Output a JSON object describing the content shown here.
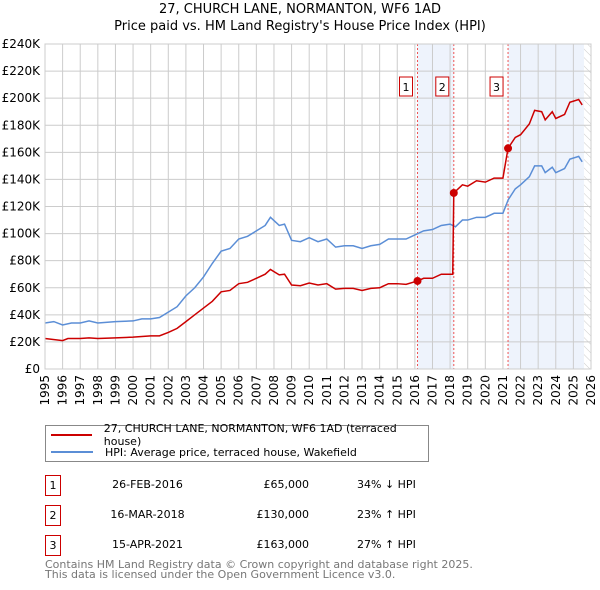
{
  "chart_data": {
    "type": "line",
    "title": "27, CHURCH LANE, NORMANTON, WF6 1AD",
    "subtitle": "Price paid vs. HM Land Registry's House Price Index (HPI)",
    "xlim": [
      1995,
      2026
    ],
    "ylim": [
      0,
      240000
    ],
    "y_ticks": [
      "£0",
      "£20K",
      "£40K",
      "£60K",
      "£80K",
      "£100K",
      "£120K",
      "£140K",
      "£160K",
      "£180K",
      "£200K",
      "£220K",
      "£240K"
    ],
    "x_ticks": [
      "1995",
      "1996",
      "1997",
      "1998",
      "1999",
      "2000",
      "2001",
      "2002",
      "2003",
      "2004",
      "2005",
      "2006",
      "2007",
      "2008",
      "2009",
      "2010",
      "2011",
      "2012",
      "2013",
      "2014",
      "2015",
      "2016",
      "2017",
      "2018",
      "2019",
      "2020",
      "2021",
      "2022",
      "2023",
      "2024",
      "2025",
      "2026"
    ],
    "grid": true,
    "series": [
      {
        "name": "27, CHURCH LANE, NORMANTON, WF6 1AD (terraced house)",
        "color": "#cc0000",
        "points": [
          [
            1995,
            22500
          ],
          [
            1996,
            21000
          ],
          [
            1996.3,
            22500
          ],
          [
            1997,
            22500
          ],
          [
            1997.5,
            23000
          ],
          [
            1998,
            22500
          ],
          [
            1999,
            23000
          ],
          [
            2000,
            23500
          ],
          [
            2001,
            24500
          ],
          [
            2001.5,
            24500
          ],
          [
            2002,
            27000
          ],
          [
            2002.5,
            30000
          ],
          [
            2003,
            35000
          ],
          [
            2003.5,
            40000
          ],
          [
            2004,
            45000
          ],
          [
            2004.5,
            50000
          ],
          [
            2005,
            57000
          ],
          [
            2005.5,
            58000
          ],
          [
            2006,
            63000
          ],
          [
            2006.5,
            64000
          ],
          [
            2007,
            67000
          ],
          [
            2007.5,
            70000
          ],
          [
            2007.8,
            73500
          ],
          [
            2008.3,
            69500
          ],
          [
            2008.6,
            70000
          ],
          [
            2009,
            62000
          ],
          [
            2009.5,
            61500
          ],
          [
            2010,
            63500
          ],
          [
            2010.5,
            62000
          ],
          [
            2011,
            63000
          ],
          [
            2011.5,
            59000
          ],
          [
            2012,
            59500
          ],
          [
            2012.5,
            59500
          ],
          [
            2013,
            58000
          ],
          [
            2013.5,
            59500
          ],
          [
            2014,
            60000
          ],
          [
            2014.5,
            63000
          ],
          [
            2015,
            63000
          ],
          [
            2015.5,
            62500
          ],
          [
            2016.15,
            65000
          ],
          [
            2016.5,
            67000
          ],
          [
            2017,
            67000
          ],
          [
            2017.5,
            70000
          ],
          [
            2018.15,
            70000
          ],
          [
            2018.21,
            130000
          ],
          [
            2018.7,
            136000
          ],
          [
            2019,
            135000
          ],
          [
            2019.5,
            139000
          ],
          [
            2020,
            138000
          ],
          [
            2020.5,
            141000
          ],
          [
            2021,
            141000
          ],
          [
            2021.29,
            163000
          ],
          [
            2021.7,
            171000
          ],
          [
            2022,
            173000
          ],
          [
            2022.5,
            181000
          ],
          [
            2022.8,
            191000
          ],
          [
            2023.2,
            190000
          ],
          [
            2023.4,
            184000
          ],
          [
            2023.8,
            190000
          ],
          [
            2024,
            185000
          ],
          [
            2024.5,
            188000
          ],
          [
            2024.8,
            197000
          ],
          [
            2025.3,
            199000
          ],
          [
            2025.5,
            195000
          ]
        ]
      },
      {
        "name": "HPI: Average price, terraced house, Wakefield",
        "color": "#5b8ed6",
        "points": [
          [
            1995,
            34000
          ],
          [
            1995.5,
            35000
          ],
          [
            1996,
            32500
          ],
          [
            1996.5,
            34000
          ],
          [
            1997,
            34000
          ],
          [
            1997.5,
            35500
          ],
          [
            1998,
            34000
          ],
          [
            1999,
            35000
          ],
          [
            2000,
            35500
          ],
          [
            2000.5,
            37000
          ],
          [
            2001,
            37000
          ],
          [
            2001.5,
            38000
          ],
          [
            2002,
            42000
          ],
          [
            2002.5,
            46000
          ],
          [
            2003,
            54000
          ],
          [
            2003.5,
            60000
          ],
          [
            2004,
            68000
          ],
          [
            2004.5,
            78000
          ],
          [
            2005,
            87000
          ],
          [
            2005.5,
            89000
          ],
          [
            2006,
            96000
          ],
          [
            2006.5,
            98000
          ],
          [
            2007,
            102000
          ],
          [
            2007.5,
            106000
          ],
          [
            2007.8,
            112000
          ],
          [
            2008.3,
            106000
          ],
          [
            2008.6,
            107000
          ],
          [
            2009,
            95000
          ],
          [
            2009.5,
            94000
          ],
          [
            2010,
            97000
          ],
          [
            2010.5,
            94000
          ],
          [
            2011,
            96000
          ],
          [
            2011.5,
            90000
          ],
          [
            2012,
            91000
          ],
          [
            2012.5,
            91000
          ],
          [
            2013,
            89000
          ],
          [
            2013.5,
            91000
          ],
          [
            2014,
            92000
          ],
          [
            2014.5,
            96000
          ],
          [
            2015,
            96000
          ],
          [
            2015.5,
            96000
          ],
          [
            2016,
            99000
          ],
          [
            2016.5,
            102000
          ],
          [
            2017,
            103000
          ],
          [
            2017.5,
            106000
          ],
          [
            2018,
            107000
          ],
          [
            2018.3,
            105000
          ],
          [
            2018.7,
            110000
          ],
          [
            2019,
            110000
          ],
          [
            2019.5,
            112000
          ],
          [
            2020,
            112000
          ],
          [
            2020.5,
            115000
          ],
          [
            2021,
            115000
          ],
          [
            2021.3,
            125000
          ],
          [
            2021.7,
            133000
          ],
          [
            2022,
            136000
          ],
          [
            2022.5,
            142000
          ],
          [
            2022.8,
            150000
          ],
          [
            2023.2,
            150000
          ],
          [
            2023.4,
            145000
          ],
          [
            2023.8,
            149000
          ],
          [
            2024,
            145000
          ],
          [
            2024.5,
            148000
          ],
          [
            2024.8,
            155000
          ],
          [
            2025.3,
            157000
          ],
          [
            2025.5,
            153000
          ]
        ]
      }
    ],
    "sales": [
      {
        "label": "1",
        "date": "26-FEB-2016",
        "x": 2016.15,
        "price": "£65,000",
        "value": 65000,
        "hpi": "34% ↓ HPI"
      },
      {
        "label": "2",
        "date": "16-MAR-2018",
        "x": 2018.21,
        "price": "£130,000",
        "value": 130000,
        "hpi": "23% ↑ HPI"
      },
      {
        "label": "3",
        "date": "15-APR-2021",
        "x": 2021.29,
        "price": "£163,000",
        "value": 163000,
        "hpi": "27% ↑ HPI"
      }
    ],
    "shaded_ranges": [
      [
        2016.15,
        2018.21
      ],
      [
        2021.29,
        2025.6
      ]
    ],
    "data_end": 2025.6
  },
  "footer": {
    "line1": "Contains HM Land Registry data © Crown copyright and database right 2025.",
    "line2": "This data is licensed under the Open Government Licence v3.0."
  }
}
